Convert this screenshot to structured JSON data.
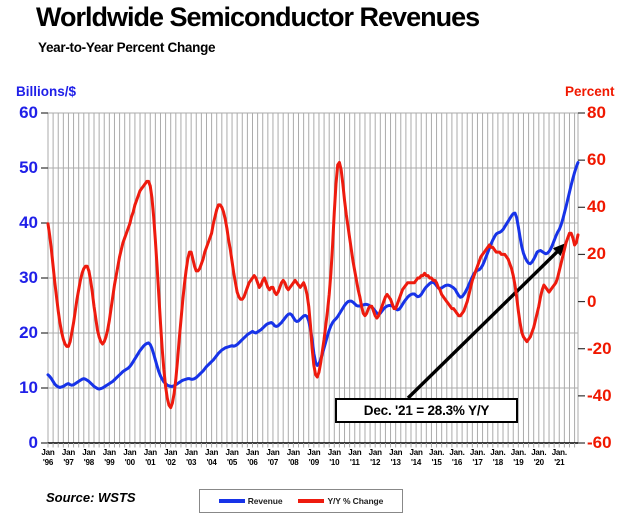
{
  "title": "Worldwide Semiconductor Revenues",
  "subtitle": "Year-to-Year Percent Change",
  "source": "Source: WSTS",
  "annotation": {
    "text": "Dec. '21 = 28.3% Y/Y"
  },
  "legend": [
    {
      "label": "Revenue",
      "color": "#1733E8"
    },
    {
      "label": "Y/Y % Change",
      "color": "#EE1B0E"
    }
  ],
  "colors": {
    "revenue_line": "#1733E8",
    "yoy_line": "#EE1B0E",
    "left_axis_text": "#2020E8",
    "right_axis_text": "#F01800",
    "grid": "#ABABAB",
    "axis": "#000000",
    "tick": "#333333"
  },
  "chart_data": {
    "type": "line",
    "title": "Worldwide Semiconductor Revenues",
    "subtitle": "Year-to-Year Percent Change",
    "x_unit": "month",
    "x_range": "Jan 1996 - Dec 2021",
    "grid": "quarterly vertical, horizontal every 10 left-units",
    "legend_position": "bottom-center",
    "left_axis": {
      "title": "Billions/$",
      "min": 0,
      "max": 60,
      "ticks": [
        0,
        10,
        20,
        30,
        40,
        50,
        60
      ]
    },
    "right_axis": {
      "title": "Percent",
      "min": -60,
      "max": 80,
      "ticks": [
        -60,
        -40,
        -20,
        0,
        20,
        40,
        60,
        80
      ]
    },
    "x_tick_labels_top": [
      "Jan",
      "Jan",
      "Jan",
      "Jan",
      "Jan",
      "Jan",
      "Jan",
      "Jan",
      "Jan",
      "Jan",
      "Jan",
      "Jan",
      "Jan",
      "Jan",
      "Jan",
      "Jan",
      "Jan",
      "Jan",
      "Jan",
      "Jan.",
      "Jan.",
      "Jan.",
      "Jan.",
      "Jan.",
      "Jan.",
      "Jan."
    ],
    "x_tick_labels_bottom": [
      "'96",
      "'97",
      "'98",
      "'99",
      "'00",
      "'01",
      "'02",
      "'03",
      "'04",
      "'05",
      "'06",
      "'07",
      "'08",
      "'09",
      "'10",
      "'11",
      "'12",
      "'13",
      "'14",
      "'15",
      "'16",
      "'17",
      "'18",
      "'19",
      "'20",
      "'21"
    ],
    "annotation": {
      "text": "Dec. '21 = 28.3% Y/Y",
      "points_to": "Dec 2021 Y/Y value"
    },
    "series": [
      {
        "name": "Revenue",
        "axis": "left",
        "color": "#1733E8",
        "monthly_by_year": {
          "1996": [
            12.4,
            12.1,
            11.7,
            11.2,
            10.7,
            10.4,
            10.2,
            10.1,
            10.2,
            10.3,
            10.5,
            10.7
          ],
          "1997": [
            10.8,
            10.6,
            10.5,
            10.6,
            10.8,
            11.0,
            11.2,
            11.4,
            11.6,
            11.7,
            11.6,
            11.4
          ],
          "1998": [
            11.2,
            10.9,
            10.6,
            10.3,
            10.1,
            9.9,
            9.8,
            9.9,
            10.0,
            10.2,
            10.4,
            10.6
          ],
          "1999": [
            10.8,
            11.0,
            11.2,
            11.5,
            11.8,
            12.1,
            12.4,
            12.7,
            13.0,
            13.2,
            13.4,
            13.6
          ],
          "2000": [
            13.9,
            14.3,
            14.8,
            15.3,
            15.8,
            16.3,
            16.8,
            17.2,
            17.6,
            17.9,
            18.1,
            18.2
          ],
          "2001": [
            17.9,
            17.2,
            16.2,
            15.1,
            14.0,
            13.0,
            12.2,
            11.6,
            11.1,
            10.8,
            10.5,
            10.4
          ],
          "2002": [
            10.3,
            10.3,
            10.4,
            10.6,
            10.8,
            11.0,
            11.2,
            11.4,
            11.5,
            11.6,
            11.7,
            11.7
          ],
          "2003": [
            11.6,
            11.6,
            11.7,
            11.9,
            12.2,
            12.5,
            12.8,
            13.1,
            13.5,
            13.9,
            14.2,
            14.5
          ],
          "2004": [
            14.8,
            15.1,
            15.5,
            15.9,
            16.3,
            16.6,
            16.9,
            17.1,
            17.3,
            17.4,
            17.5,
            17.6
          ],
          "2005": [
            17.7,
            17.6,
            17.7,
            17.9,
            18.2,
            18.5,
            18.8,
            19.1,
            19.4,
            19.7,
            19.9,
            20.1
          ],
          "2006": [
            20.3,
            20.1,
            20.0,
            20.2,
            20.4,
            20.6,
            20.9,
            21.2,
            21.5,
            21.7,
            21.8,
            21.9
          ],
          "2007": [
            21.7,
            21.3,
            21.2,
            21.3,
            21.6,
            21.9,
            22.3,
            22.7,
            23.1,
            23.4,
            23.5,
            23.3
          ],
          "2008": [
            22.8,
            22.3,
            22.1,
            22.2,
            22.5,
            22.8,
            23.1,
            23.2,
            23.0,
            22.2,
            20.7,
            18.8
          ],
          "2009": [
            16.3,
            14.7,
            14.1,
            14.4,
            15.2,
            16.2,
            17.3,
            18.4,
            19.5,
            20.5,
            21.3,
            21.9
          ],
          "2010": [
            22.3,
            22.6,
            23.0,
            23.5,
            24.0,
            24.5,
            25.0,
            25.4,
            25.7,
            25.8,
            25.8,
            25.6
          ],
          "2011": [
            25.3,
            25.0,
            24.9,
            24.9,
            25.0,
            25.1,
            25.2,
            25.2,
            25.1,
            24.9,
            24.7,
            24.4
          ],
          "2012": [
            24.0,
            23.6,
            23.4,
            23.6,
            24.0,
            24.4,
            24.7,
            24.9,
            25.0,
            25.0,
            24.9,
            24.7
          ],
          "2013": [
            24.4,
            24.2,
            24.3,
            24.7,
            25.2,
            25.7,
            26.1,
            26.5,
            26.8,
            27.0,
            27.1,
            27.1
          ],
          "2014": [
            26.8,
            26.6,
            26.7,
            27.0,
            27.5,
            28.0,
            28.4,
            28.7,
            29.0,
            29.2,
            29.2,
            29.0
          ],
          "2015": [
            28.6,
            28.2,
            28.1,
            28.2,
            28.4,
            28.6,
            28.7,
            28.7,
            28.6,
            28.4,
            28.2,
            27.9
          ],
          "2016": [
            27.3,
            26.8,
            26.5,
            26.6,
            27.0,
            27.5,
            28.1,
            28.8,
            29.5,
            30.2,
            30.8,
            31.2
          ],
          "2017": [
            31.4,
            31.5,
            31.8,
            32.3,
            33.0,
            33.8,
            34.6,
            35.4,
            36.2,
            36.9,
            37.5,
            38.0
          ],
          "2018": [
            38.2,
            38.3,
            38.5,
            38.8,
            39.3,
            39.8,
            40.3,
            40.8,
            41.3,
            41.7,
            41.8,
            41.0
          ],
          "2019": [
            39.3,
            37.4,
            35.7,
            34.5,
            33.7,
            33.1,
            32.7,
            32.6,
            32.9,
            33.4,
            34.0,
            34.7
          ],
          "2020": [
            34.9,
            35.0,
            34.8,
            34.6,
            34.4,
            34.5,
            34.8,
            35.3,
            36.0,
            36.8,
            37.6,
            38.3
          ],
          "2021": [
            38.8,
            39.6,
            40.6,
            41.8,
            43.0,
            44.3,
            45.6,
            46.9,
            48.1,
            49.2,
            50.2,
            51.0
          ]
        }
      },
      {
        "name": "Y/Y % Change",
        "axis": "right",
        "color": "#EE1B0E",
        "monthly_by_year": {
          "1996": [
            33,
            28,
            22,
            15,
            8,
            2,
            -4,
            -9,
            -13,
            -16,
            -18,
            -19
          ],
          "1997": [
            -19,
            -17,
            -13,
            -9,
            -4,
            1,
            5,
            9,
            12,
            14,
            15,
            15
          ],
          "1998": [
            13,
            9,
            4,
            -2,
            -7,
            -12,
            -15,
            -17,
            -18,
            -17,
            -15,
            -12
          ],
          "1999": [
            -8,
            -3,
            2,
            7,
            11,
            15,
            19,
            22,
            25,
            27,
            29,
            31
          ],
          "2000": [
            33,
            36,
            38,
            41,
            43,
            45,
            47,
            48,
            49,
            50,
            51,
            51
          ],
          "2001": [
            49,
            44,
            36,
            26,
            15,
            3,
            -9,
            -20,
            -29,
            -36,
            -41,
            -44
          ],
          "2002": [
            -45,
            -43,
            -39,
            -33,
            -25,
            -16,
            -8,
            0,
            7,
            13,
            18,
            21
          ],
          "2003": [
            21,
            18,
            15,
            13,
            13,
            14,
            16,
            18,
            21,
            23,
            25,
            27
          ],
          "2004": [
            29,
            33,
            36,
            39,
            41,
            41,
            40,
            38,
            35,
            31,
            26,
            22
          ],
          "2005": [
            17,
            12,
            8,
            4,
            2,
            1,
            1,
            2,
            4,
            6,
            8,
            9
          ],
          "2006": [
            10,
            11,
            10,
            8,
            6,
            7,
            9,
            10,
            8,
            6,
            5,
            6
          ],
          "2007": [
            6,
            4,
            3,
            4,
            6,
            8,
            9,
            8,
            6,
            5,
            6,
            7
          ],
          "2008": [
            8,
            9,
            8,
            7,
            6,
            7,
            8,
            6,
            3,
            -2,
            -10,
            -20
          ],
          "2009": [
            -27,
            -31,
            -32,
            -30,
            -26,
            -21,
            -16,
            -10,
            -4,
            3,
            12,
            24
          ],
          "2010": [
            38,
            50,
            58,
            59,
            56,
            50,
            43,
            37,
            32,
            27,
            22,
            17
          ],
          "2011": [
            13,
            9,
            5,
            2,
            -2,
            -5,
            -6,
            -5,
            -3,
            -2,
            -2,
            -4
          ],
          "2012": [
            -6,
            -7,
            -6,
            -4,
            -2,
            0,
            2,
            3,
            2,
            1,
            -1,
            -3
          ],
          "2013": [
            -3,
            -1,
            1,
            3,
            5,
            6,
            7,
            8,
            8,
            8,
            8,
            8
          ],
          "2014": [
            9,
            10,
            10,
            11,
            11,
            12,
            11,
            11,
            10,
            10,
            9,
            9
          ],
          "2015": [
            8,
            6,
            5,
            3,
            2,
            1,
            0,
            -1,
            -2,
            -3,
            -3,
            -4
          ],
          "2016": [
            -5,
            -6,
            -6,
            -5,
            -4,
            -2,
            0,
            3,
            6,
            9,
            11,
            13
          ],
          "2017": [
            15,
            17,
            19,
            20,
            21,
            22,
            23,
            24,
            23,
            23,
            22,
            21
          ],
          "2018": [
            21,
            21,
            20,
            20,
            20,
            19,
            18,
            16,
            14,
            11,
            7,
            2
          ],
          "2019": [
            -4,
            -9,
            -13,
            -15,
            -16,
            -17,
            -16,
            -15,
            -13,
            -11,
            -8,
            -5
          ],
          "2020": [
            -2,
            2,
            5,
            7,
            6,
            5,
            4,
            5,
            6,
            7,
            8,
            10
          ],
          "2021": [
            13,
            16,
            19,
            22,
            25,
            27,
            29,
            29,
            27,
            24,
            25,
            28.3
          ]
        }
      }
    ]
  }
}
